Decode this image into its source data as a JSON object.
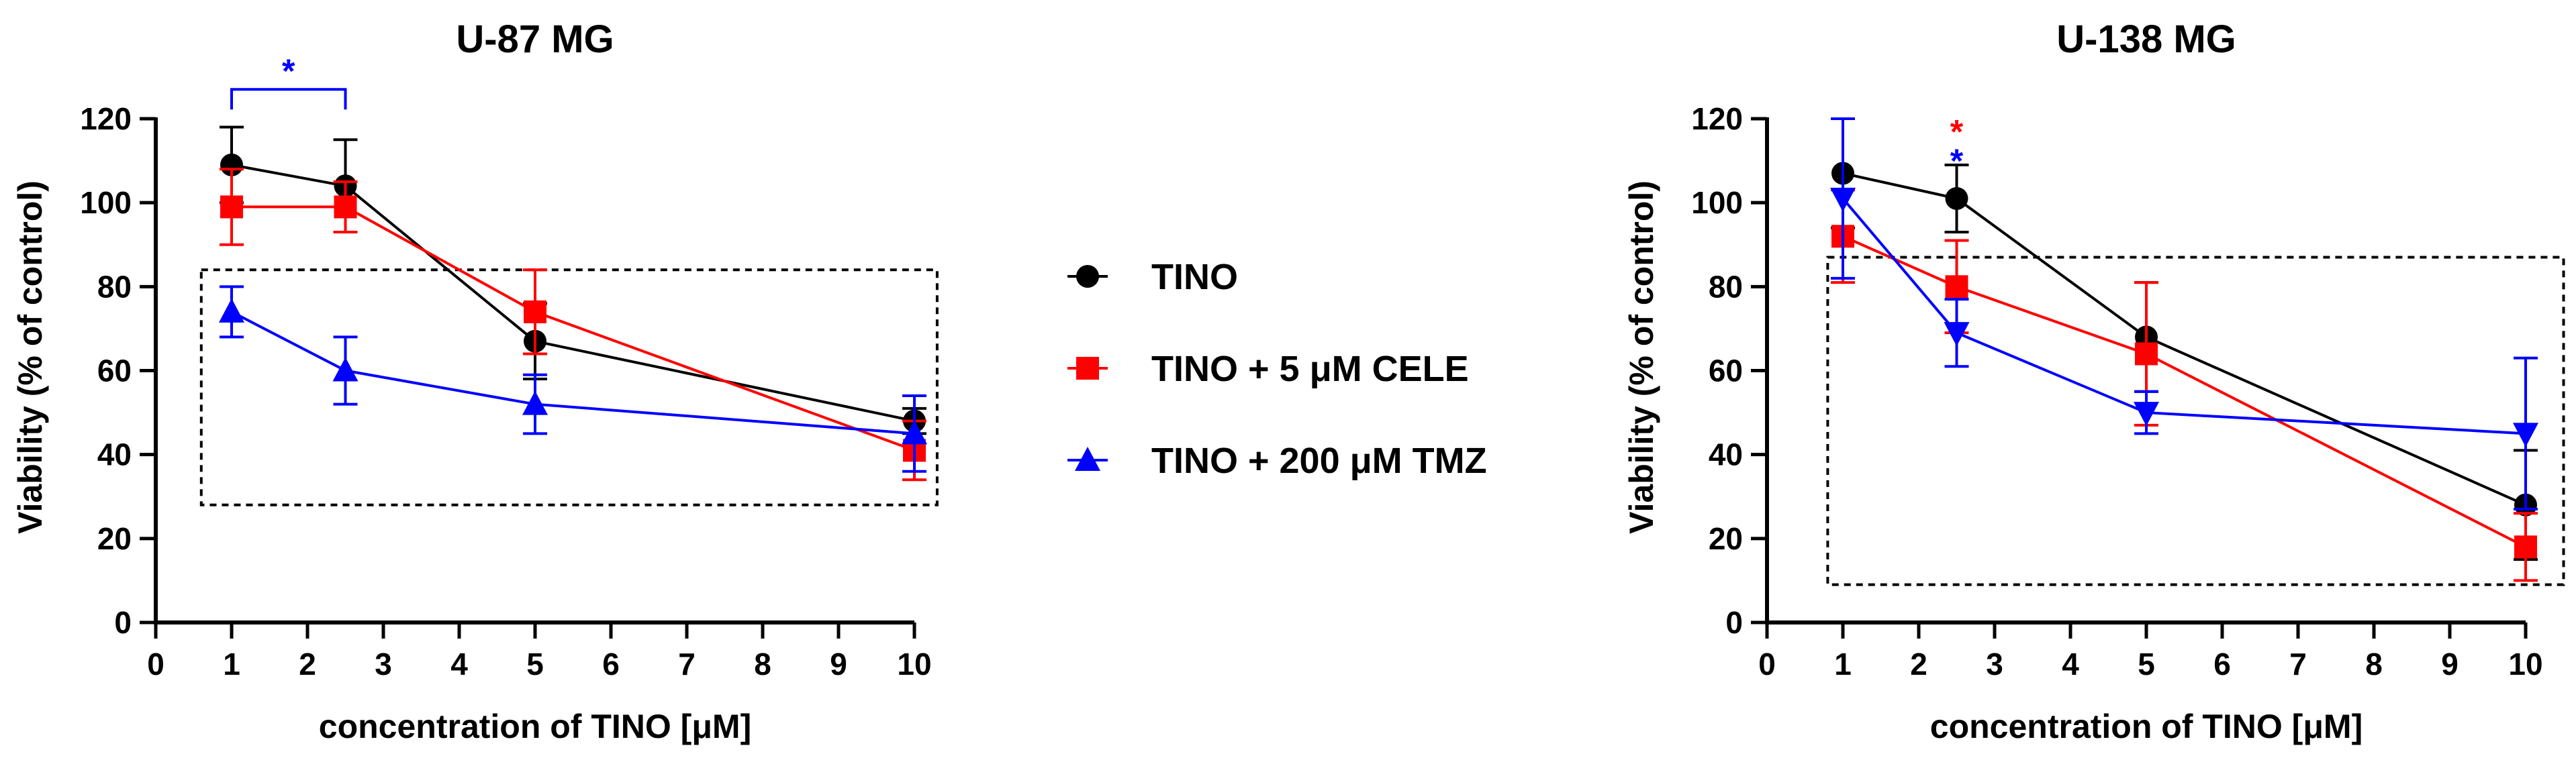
{
  "legend": [
    {
      "name": "TINO",
      "color": "#000000",
      "marker": "circle"
    },
    {
      "name": "TINO + 5 μM CELE",
      "color": "#ff0000",
      "marker": "square"
    },
    {
      "name": "TINO + 200 μM TMZ",
      "color": "#0000ff",
      "marker": "triangle-up"
    }
  ],
  "chart_data": [
    {
      "type": "line",
      "title": "U-87 MG",
      "xlabel": "concentration of TINO [μM]",
      "ylabel": "Viability (% of control)",
      "xlim": [
        0,
        10
      ],
      "ylim": [
        0,
        120
      ],
      "xticks": [
        0,
        1,
        2,
        3,
        4,
        5,
        6,
        7,
        8,
        9,
        10
      ],
      "yticks": [
        0,
        20,
        40,
        60,
        80,
        100,
        120
      ],
      "x": [
        1,
        2.5,
        5,
        10
      ],
      "series": [
        {
          "name": "TINO",
          "color": "#000000",
          "marker": "circle",
          "values": [
            109,
            104,
            67,
            48
          ],
          "error": [
            9,
            11,
            9,
            3
          ]
        },
        {
          "name": "TINO + 5 μM CELE",
          "color": "#ff0000",
          "marker": "square",
          "values": [
            99,
            99,
            74,
            41
          ],
          "error": [
            9,
            6,
            10,
            7
          ]
        },
        {
          "name": "TINO + 200 μM TMZ",
          "color": "#0000ff",
          "marker": "triangle-up",
          "values": [
            74,
            60,
            52,
            45
          ],
          "error": [
            6,
            8,
            7,
            9
          ]
        }
      ],
      "annotations": [
        {
          "type": "bracket",
          "text": "*",
          "color": "#0000ff",
          "x": [
            1,
            2.5
          ],
          "y": 127
        }
      ],
      "highlight_box": {
        "x": [
          0.6,
          10.3
        ],
        "y": [
          28,
          84
        ]
      },
      "grid": false
    },
    {
      "type": "line",
      "title": "U-138 MG",
      "xlabel": "concentration of TINO [μM]",
      "ylabel": "Viability (% of control)",
      "xlim": [
        0,
        10
      ],
      "ylim": [
        0,
        120
      ],
      "xticks": [
        0,
        1,
        2,
        3,
        4,
        5,
        6,
        7,
        8,
        9,
        10
      ],
      "yticks": [
        0,
        20,
        40,
        60,
        80,
        100,
        120
      ],
      "x": [
        1,
        2.5,
        5,
        10
      ],
      "series": [
        {
          "name": "TINO",
          "color": "#000000",
          "marker": "circle",
          "values": [
            107,
            101,
            68,
            28
          ],
          "error": [
            13,
            8,
            13,
            13
          ]
        },
        {
          "name": "TINO + 5 μM CELE",
          "color": "#ff0000",
          "marker": "square",
          "values": [
            92,
            80,
            64,
            18
          ],
          "error": [
            11,
            11,
            17,
            8
          ]
        },
        {
          "name": "TINO + 200 μM TMZ",
          "color": "#0000ff",
          "marker": "triangle-down",
          "values": [
            101,
            69,
            50,
            45
          ],
          "error": [
            19,
            8,
            5,
            18
          ]
        }
      ],
      "annotations": [
        {
          "type": "star",
          "text": "*",
          "color": "#ff0000",
          "x": 2.5,
          "y": 119
        },
        {
          "type": "star",
          "text": "*",
          "color": "#0000ff",
          "x": 2.5,
          "y": 112
        }
      ],
      "highlight_box": {
        "x": [
          0.8,
          10.5
        ],
        "y": [
          9,
          87
        ]
      },
      "grid": false
    }
  ]
}
